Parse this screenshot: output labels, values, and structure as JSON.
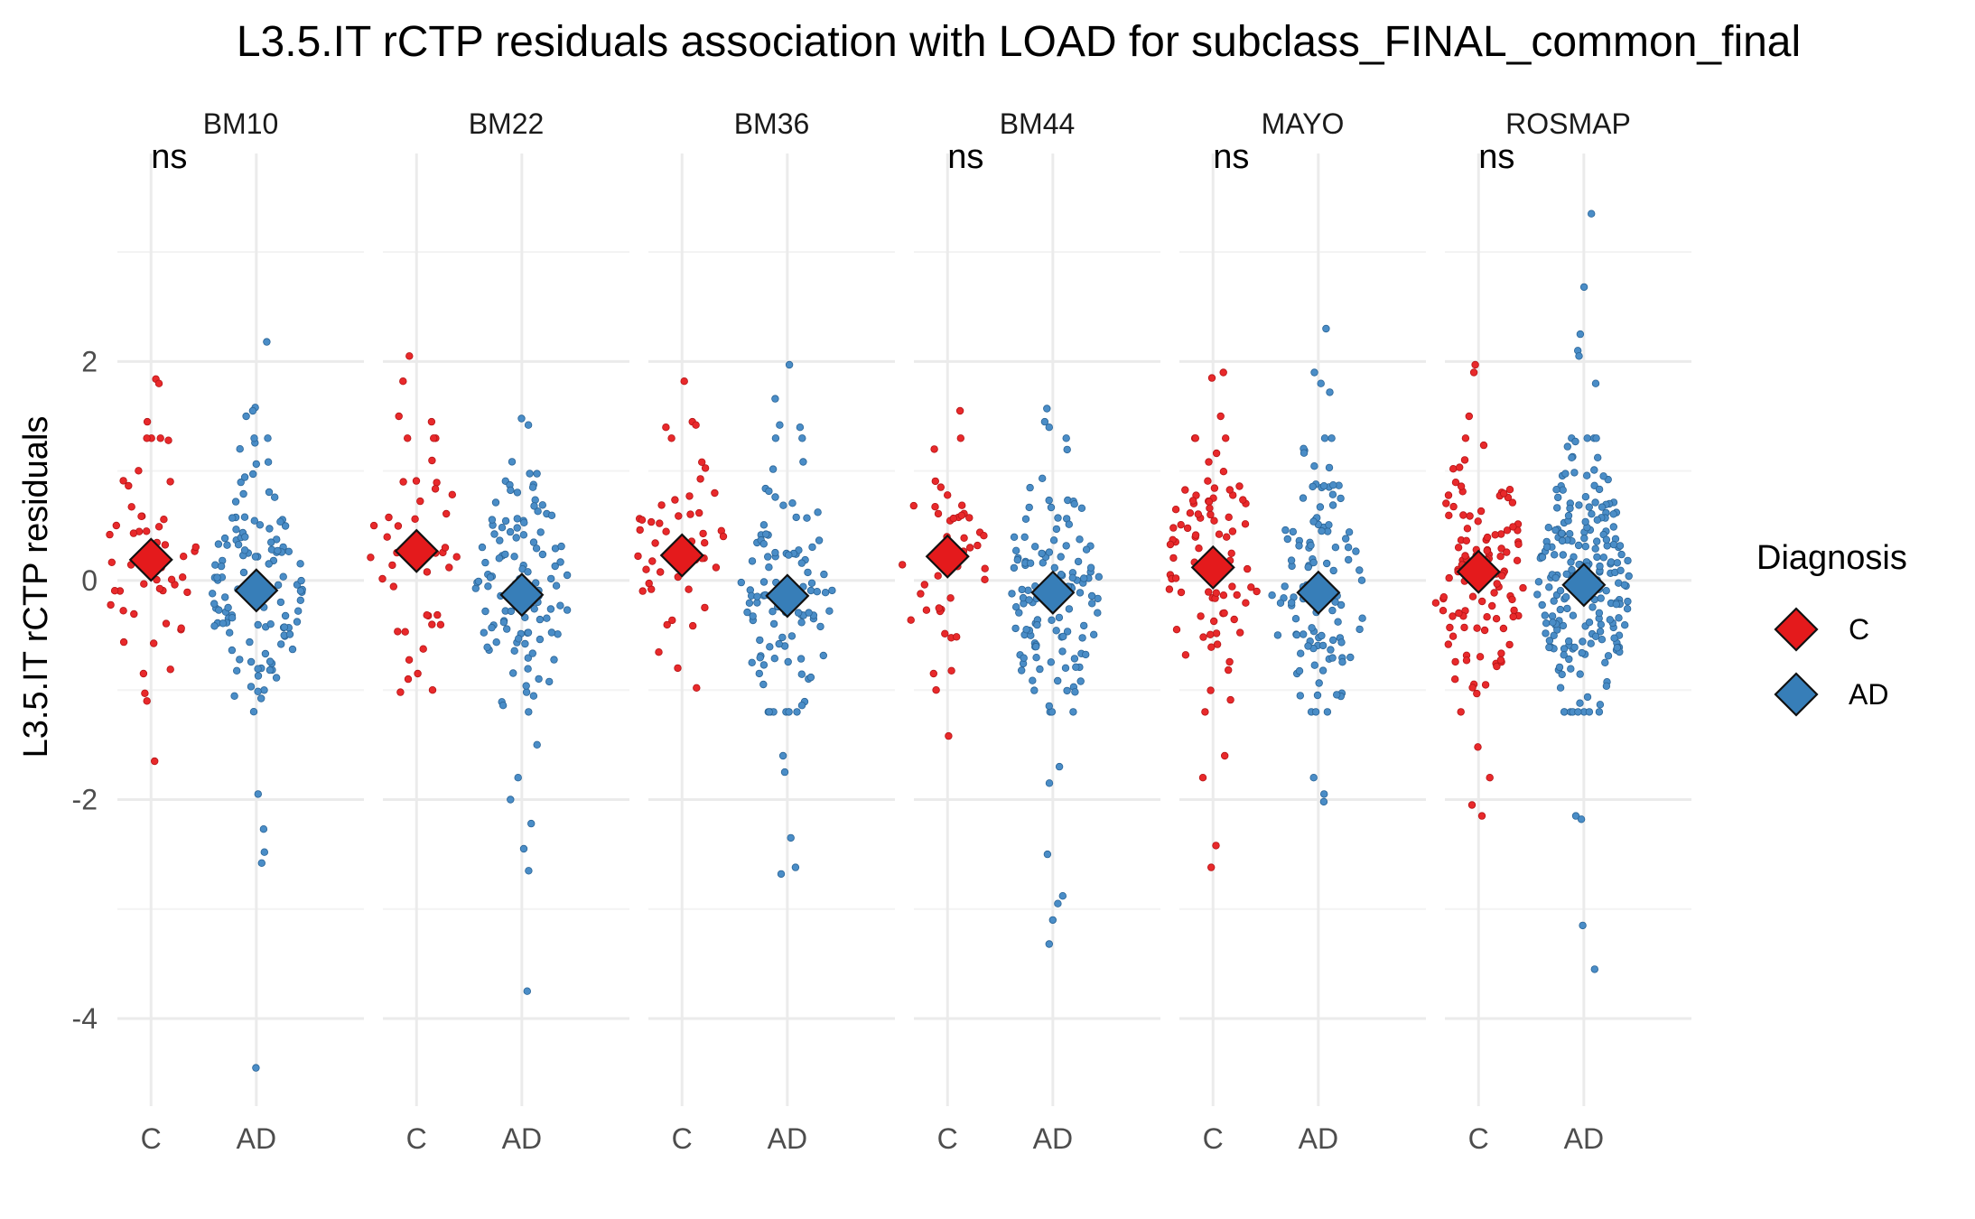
{
  "chart_data": {
    "type": "scatter",
    "title": "L3.5.IT rCTP residuals association with LOAD for subclass_FINAL_common_final",
    "ylabel": "L3.5.IT rCTP residuals",
    "xlabel": "",
    "ylim": [
      -4.8,
      3.9
    ],
    "y_ticks": [
      -4,
      -2,
      0,
      2
    ],
    "categories": [
      "C",
      "AD"
    ],
    "legend": {
      "title": "Diagnosis",
      "position": "right",
      "entries": [
        {
          "label": "C",
          "color": "#e41a1c"
        },
        {
          "label": "AD",
          "color": "#377eb8"
        }
      ]
    },
    "colors": {
      "C": "#e41a1c",
      "AD": "#377eb8",
      "point_C": "#e8292b",
      "point_AD": "#4a8dc7"
    },
    "grid": true,
    "panels": [
      {
        "name": "BM10",
        "annotation": "ns",
        "series": [
          {
            "name": "C",
            "mean": 0.19,
            "n": 45,
            "spread": 0.75,
            "seed": 11,
            "extremes": [
              1.84,
              1.8,
              1.45,
              1.3,
              1.28,
              -1.1,
              -1.65,
              -0.85
            ]
          },
          {
            "name": "AD",
            "mean": -0.09,
            "n": 120,
            "spread": 0.85,
            "seed": 12,
            "extremes": [
              2.18,
              1.58,
              1.55,
              1.5,
              -1.95,
              -2.27,
              -2.48,
              -2.58,
              -4.45
            ]
          }
        ]
      },
      {
        "name": "BM22",
        "annotation": "",
        "series": [
          {
            "name": "C",
            "mean": 0.27,
            "n": 40,
            "spread": 0.75,
            "seed": 21,
            "extremes": [
              2.05,
              1.82,
              1.5,
              1.45,
              -0.9,
              -1.0,
              -1.02,
              -0.85
            ]
          },
          {
            "name": "AD",
            "mean": -0.13,
            "n": 110,
            "spread": 0.75,
            "seed": 22,
            "extremes": [
              1.48,
              1.42,
              -1.2,
              -1.5,
              -1.8,
              -2.0,
              -2.22,
              -2.45,
              -2.65,
              -3.75
            ]
          }
        ]
      },
      {
        "name": "BM36",
        "annotation": "",
        "series": [
          {
            "name": "C",
            "mean": 0.23,
            "n": 42,
            "spread": 0.7,
            "seed": 31,
            "extremes": [
              1.82,
              1.45,
              1.42,
              1.4,
              -0.8,
              -0.98
            ]
          },
          {
            "name": "AD",
            "mean": -0.14,
            "n": 100,
            "spread": 0.85,
            "seed": 32,
            "extremes": [
              1.97,
              1.66,
              1.42,
              1.4,
              -1.6,
              -1.75,
              -2.35,
              -2.62,
              -2.68
            ]
          }
        ]
      },
      {
        "name": "BM44",
        "annotation": "ns",
        "series": [
          {
            "name": "C",
            "mean": 0.22,
            "n": 40,
            "spread": 0.65,
            "seed": 41,
            "extremes": [
              1.55,
              1.3,
              1.2,
              -0.85,
              -1.0,
              -1.42
            ]
          },
          {
            "name": "AD",
            "mean": -0.11,
            "n": 120,
            "spread": 0.8,
            "seed": 42,
            "extremes": [
              1.57,
              1.45,
              1.4,
              -1.7,
              -1.85,
              -2.5,
              -2.88,
              -2.95,
              -3.1,
              -3.32
            ]
          }
        ]
      },
      {
        "name": "MAYO",
        "annotation": "ns",
        "series": [
          {
            "name": "C",
            "mean": 0.12,
            "n": 85,
            "spread": 0.85,
            "seed": 51,
            "extremes": [
              1.9,
              1.85,
              1.5,
              -1.6,
              -1.8,
              -2.42,
              -2.62
            ]
          },
          {
            "name": "AD",
            "mean": -0.11,
            "n": 110,
            "spread": 0.85,
            "seed": 52,
            "extremes": [
              2.3,
              1.9,
              1.8,
              1.72,
              -1.8,
              -1.95,
              -2.02
            ]
          }
        ]
      },
      {
        "name": "ROSMAP",
        "annotation": "ns",
        "series": [
          {
            "name": "C",
            "mean": 0.08,
            "n": 110,
            "spread": 0.8,
            "seed": 61,
            "extremes": [
              1.97,
              1.9,
              1.5,
              -1.8,
              -2.05,
              -2.15,
              -1.52
            ]
          },
          {
            "name": "AD",
            "mean": -0.04,
            "n": 220,
            "spread": 0.85,
            "seed": 62,
            "extremes": [
              3.35,
              2.68,
              2.25,
              2.1,
              2.05,
              1.8,
              -2.15,
              -2.18,
              -3.15,
              -3.55
            ]
          }
        ]
      }
    ]
  }
}
